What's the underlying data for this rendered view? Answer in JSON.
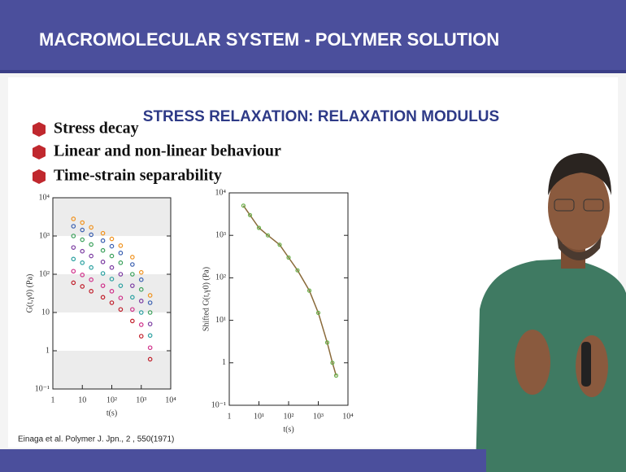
{
  "header": {
    "title": "MACROMOLECULAR SYSTEM - POLYMER SOLUTION"
  },
  "slide": {
    "subtitle": "STRESS RELAXATION: RELAXATION MODULUS",
    "bullets": [
      "Stress decay",
      "Linear and non-linear behaviour",
      "Time-strain separability"
    ],
    "citation": "Einaga et al. Polymer J. Jpn., 2 , 550(1971)"
  },
  "chart_data": [
    {
      "type": "scatter",
      "x_label": "t(s)",
      "y_label": "G(t,γ0) (Pa)",
      "log_x": true,
      "log_y": true,
      "xlim": [
        1,
        10000
      ],
      "ylim": [
        0.1,
        10000
      ],
      "xticks": [
        1,
        10,
        {
          "value": 100,
          "label": "10²"
        },
        {
          "value": 1000,
          "label": "10³"
        },
        {
          "value": 10000,
          "label": "10⁴"
        }
      ],
      "yticks": [
        {
          "value": 0.1,
          "label": "10⁻¹"
        },
        1,
        10,
        {
          "value": 100,
          "label": "10²"
        },
        {
          "value": 1000,
          "label": "10³"
        },
        {
          "value": 10000,
          "label": "10⁴"
        }
      ],
      "x": [
        5,
        10,
        20,
        50,
        100,
        200,
        500,
        1000,
        2000
      ],
      "series": [
        {
          "color": "#f0921e",
          "values": [
            2800,
            2240,
            1680,
            1180,
            840,
            560,
            280,
            112,
            28
          ]
        },
        {
          "color": "#3a5fb0",
          "values": [
            1800,
            1440,
            1080,
            756,
            540,
            360,
            180,
            72,
            18
          ]
        },
        {
          "color": "#3aa05a",
          "values": [
            1000,
            800,
            600,
            420,
            300,
            200,
            100,
            40,
            10
          ]
        },
        {
          "color": "#7a3aa0",
          "values": [
            500,
            400,
            300,
            210,
            150,
            100,
            50,
            20,
            5
          ]
        },
        {
          "color": "#2aa0a0",
          "values": [
            250,
            200,
            150,
            105,
            75,
            50,
            25,
            10,
            2.5
          ]
        },
        {
          "color": "#d0308a",
          "values": [
            120,
            96,
            72,
            50,
            36,
            24,
            12,
            4.8,
            1.2
          ]
        },
        {
          "color": "#c01e2a",
          "values": [
            60,
            48,
            36,
            25,
            18,
            12,
            6,
            2.4,
            0.6
          ]
        }
      ]
    },
    {
      "type": "line",
      "x_label": "t(s)",
      "y_label": "Shifted G(t,γ0) (Pa)",
      "log_x": true,
      "log_y": true,
      "xlim": [
        1,
        10000
      ],
      "ylim": [
        0.1,
        10000
      ],
      "xticks": [
        1,
        {
          "value": 10,
          "label": "10¹"
        },
        {
          "value": 100,
          "label": "10²"
        },
        {
          "value": 1000,
          "label": "10³"
        },
        {
          "value": 10000,
          "label": "10⁴"
        }
      ],
      "yticks": [
        {
          "value": 0.1,
          "label": "10⁻¹"
        },
        1,
        {
          "value": 10,
          "label": "10¹"
        },
        {
          "value": 100,
          "label": "10²"
        },
        {
          "value": 1000,
          "label": "10³"
        },
        {
          "value": 10000,
          "label": "10⁴"
        }
      ],
      "x": [
        3,
        5,
        10,
        20,
        50,
        100,
        200,
        500,
        1000,
        2000,
        3000,
        4000
      ],
      "series": [
        {
          "color": "#8a6a3a",
          "marker_color": "#6ab04a",
          "values": [
            5000,
            3000,
            1500,
            1000,
            600,
            300,
            150,
            50,
            15,
            3,
            1,
            0.5
          ]
        }
      ]
    }
  ]
}
